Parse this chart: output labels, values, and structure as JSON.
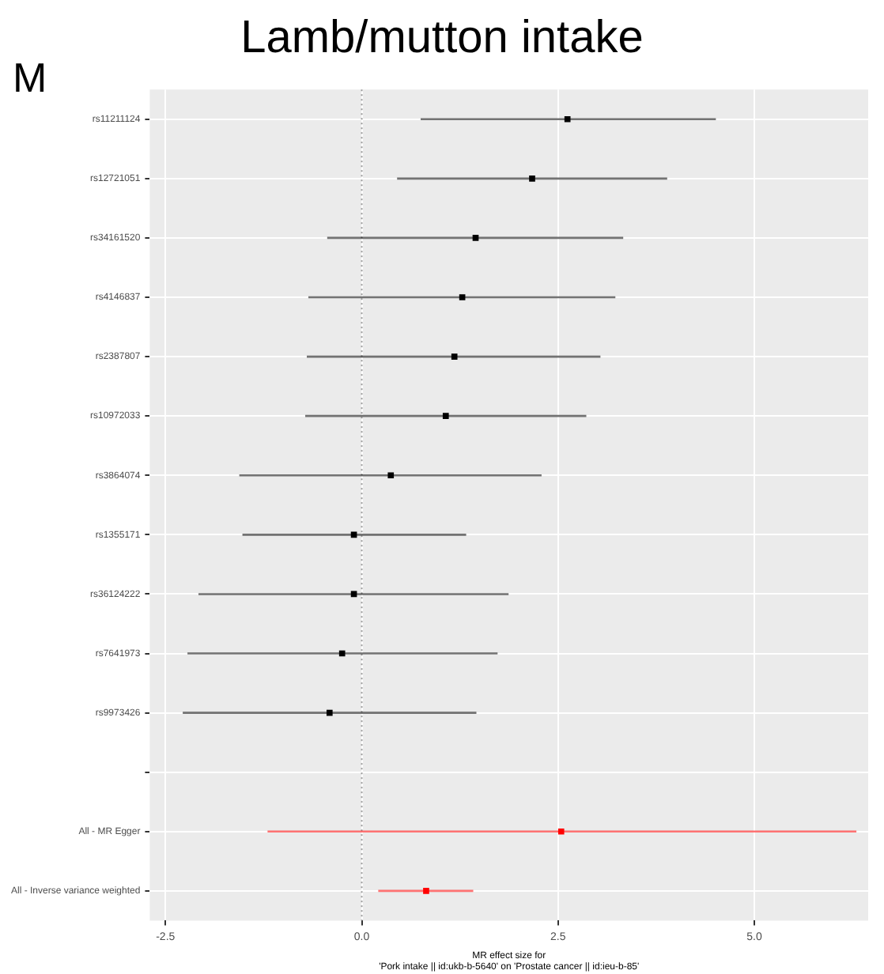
{
  "chart_data": {
    "type": "scatter",
    "orientation": "horizontal",
    "title": "Lamb/mutton intake",
    "xlabel": "MR effect size for\n'Pork intake || id:ukb-b-5640' on 'Prostate cancer || id:ieu-b-85'",
    "annotations": [
      "M"
    ],
    "categories": [
      "rs11211124",
      "rs12721051",
      "rs34161520",
      "rs4146837",
      "rs2387807",
      "rs10972033",
      "rs3864074",
      "rs1355171",
      "rs36124222",
      "rs7641973",
      "rs9973426",
      null,
      "All - MR Egger",
      "All - Inverse variance weighted"
    ],
    "series": [
      {
        "color": "#000000",
        "values": [
          2.62,
          2.17,
          1.45,
          1.28,
          1.18,
          1.07,
          0.37,
          -0.1,
          -0.1,
          -0.25,
          -0.41,
          null,
          null,
          null
        ],
        "errors": [
          [
            0.75,
            4.51
          ],
          [
            0.45,
            3.89
          ],
          [
            -0.44,
            3.33
          ],
          [
            -0.68,
            3.23
          ],
          [
            -0.7,
            3.04
          ],
          [
            -0.72,
            2.86
          ],
          [
            -1.56,
            2.29
          ],
          [
            -1.52,
            1.33
          ],
          [
            -2.08,
            1.87
          ],
          [
            -2.22,
            1.73
          ],
          [
            -2.28,
            1.46
          ],
          null,
          null,
          null
        ]
      },
      {
        "color": "#ff0000",
        "values": [
          null,
          null,
          null,
          null,
          null,
          null,
          null,
          null,
          null,
          null,
          null,
          null,
          2.54,
          0.82
        ],
        "errors": [
          null,
          null,
          null,
          null,
          null,
          null,
          null,
          null,
          null,
          null,
          null,
          null,
          [
            -1.2,
            6.3
          ],
          [
            0.21,
            1.42
          ]
        ]
      }
    ],
    "xlim": [
      -2.7,
      6.45
    ],
    "xticks": [
      -2.5,
      {
        "value": 0,
        "label": "0.0"
      },
      2.5,
      {
        "value": 5,
        "label": "5.0"
      }
    ],
    "ref_lines": [
      {
        "axis": "x",
        "value": 0,
        "line_style": "dotted",
        "color": "#999999"
      }
    ],
    "grid": true,
    "legend": false,
    "marker": "square"
  }
}
